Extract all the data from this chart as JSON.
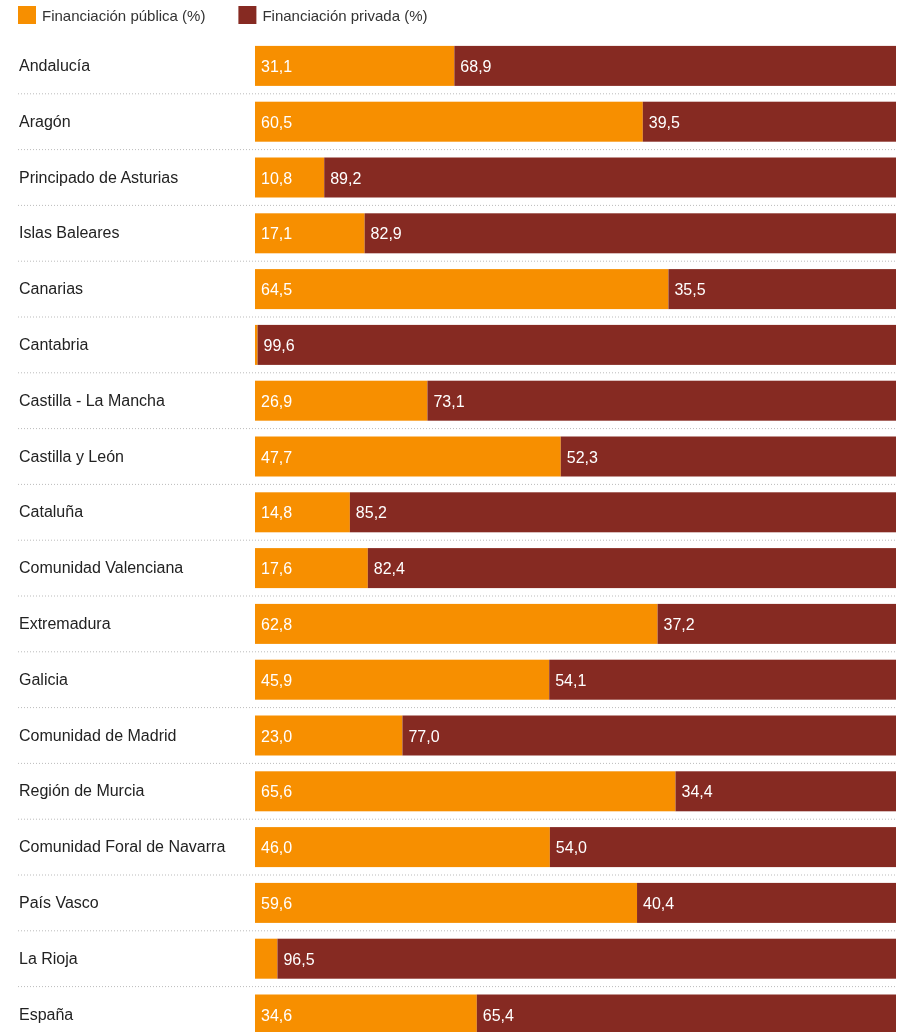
{
  "chart_data": {
    "type": "bar",
    "orientation": "horizontal",
    "stacked": true,
    "legend": "top left",
    "grid": "y",
    "tick_labels": "y",
    "xlim": [
      0,
      100
    ],
    "categories": [
      "Andalucía",
      "Aragón",
      "Principado de Asturias",
      "Islas Baleares",
      "Canarias",
      "Cantabria",
      "Castilla - La Mancha",
      "Castilla y León",
      "Cataluña",
      "Comunidad Valenciana",
      "Extremadura",
      "Galicia",
      "Comunidad de Madrid",
      "Región de Murcia",
      "Comunidad Foral de Navarra",
      "País Vasco",
      "La Rioja",
      "España"
    ],
    "series": [
      {
        "name": "Financiación pública (%)",
        "color": "#f78f00",
        "values": [
          31.1,
          60.5,
          10.8,
          17.1,
          64.5,
          0.4,
          26.9,
          47.7,
          14.8,
          17.6,
          62.8,
          45.9,
          23.0,
          65.6,
          46.0,
          59.6,
          3.5,
          34.6
        ],
        "value_labels": [
          "31,1",
          "60,5",
          "10,8",
          "17,1",
          "64,5",
          null,
          "26,9",
          "47,7",
          "14,8",
          "17,6",
          "62,8",
          "45,9",
          "23,0",
          "65,6",
          "46,0",
          "59,6",
          null,
          "34,6"
        ]
      },
      {
        "name": "Financiación privada (%)",
        "color": "#862a22",
        "values": [
          68.9,
          39.5,
          89.2,
          82.9,
          35.5,
          99.6,
          73.1,
          52.3,
          85.2,
          82.4,
          37.2,
          54.1,
          77.0,
          34.4,
          54.0,
          40.4,
          96.5,
          65.4
        ],
        "value_labels": [
          "68,9",
          "39,5",
          "89,2",
          "82,9",
          "35,5",
          "99,6",
          "73,1",
          "52,3",
          "85,2",
          "82,4",
          "37,2",
          "54,1",
          "77,0",
          "34,4",
          "54,0",
          "40,4",
          "96,5",
          "65,4"
        ]
      }
    ]
  }
}
